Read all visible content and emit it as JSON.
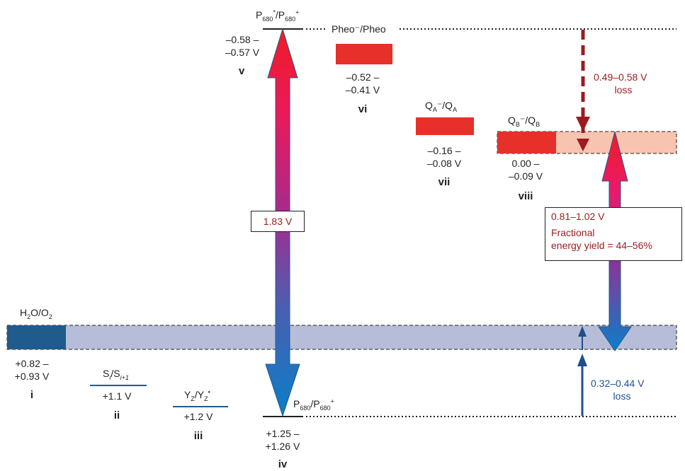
{
  "couples": {
    "p680_excited": {
      "label_a": "P",
      "sub_a": "680",
      "sup_a": "*",
      "slash": "/P",
      "sub_b": "680",
      "sup_b": "+",
      "value_1": "–0.58 –",
      "value_2": "–0.57 V",
      "roman": "v"
    },
    "pheo": {
      "label": "Pheo⁻/Pheo",
      "value_1": "–0.52 –",
      "value_2": "–0.41 V",
      "roman": "vi"
    },
    "qa": {
      "label_a": "Q",
      "sub_a": "A",
      "mid": "⁻/Q",
      "sub_b": "A",
      "value_1": "–0.16 –",
      "value_2": "–0.08 V",
      "roman": "vii"
    },
    "qb": {
      "label_a": "Q",
      "sub_a": "B",
      "mid": "⁻/Q",
      "sub_b": "B",
      "value_1": "0.00 –",
      "value_2": "–0.09 V",
      "roman": "viii"
    },
    "water": {
      "label_a": "H",
      "sub_a": "2",
      "mid": "O/O",
      "sub_b": "2",
      "value_1": "+0.82 –",
      "value_2": "+0.93 V",
      "roman": "i"
    },
    "s_states": {
      "label_a": "S",
      "sub_a": "i",
      "mid": "/S",
      "sub_b": "i+1",
      "value": "+1.1 V",
      "roman": "ii"
    },
    "yz": {
      "label_a": "Y",
      "sub_a": "Z",
      "mid": "/Y",
      "sub_b": "Z",
      "sup_b": "•",
      "value": "+1.2 V",
      "roman": "iii"
    },
    "p680_ground": {
      "label_a": "P",
      "sub_a": "680",
      "slash": "/P",
      "sub_b": "680",
      "sup_b": "+",
      "value_1": "+1.25 –",
      "value_2": "+1.26 V",
      "roman": "iv"
    }
  },
  "annotations": {
    "excitation_gap": "1.83 V",
    "top_loss_value": "0.49–0.58 V",
    "top_loss_word": "loss",
    "yield_range": "0.81–1.02 V",
    "yield_line_1": "Fractional",
    "yield_line_2": "energy yield = 44–56%",
    "bottom_loss_value": "0.32–0.44 V",
    "bottom_loss_word": "loss"
  },
  "colors": {
    "acceptor_red": "#e8302a",
    "light_red_band": "#f8c4b0",
    "water_dark_blue": "#1f5b8c",
    "water_band": "#b5bdd8",
    "loss_red": "#9b1b1f",
    "loss_blue": "#1f4e8c",
    "arrow_top": "#ee1c25",
    "arrow_mid": "#8e2a9e",
    "arrow_bottom": "#0a7ec8"
  }
}
